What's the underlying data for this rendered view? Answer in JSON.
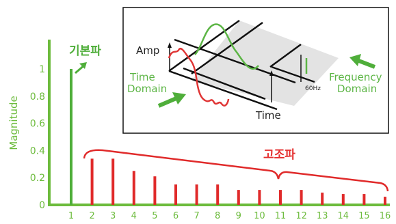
{
  "chart_data": {
    "type": "bar",
    "title": "",
    "ylabel": "Magnitude",
    "xlabel": "",
    "ylim": [
      0,
      1.1
    ],
    "y_ticks": [
      "0",
      "0.2",
      "0.4",
      "0.6",
      "0.8",
      "1"
    ],
    "categories": [
      "1",
      "2",
      "3",
      "4",
      "5",
      "6",
      "7",
      "8",
      "9",
      "10",
      "11",
      "12",
      "13",
      "14",
      "15",
      "16"
    ],
    "values": [
      1.0,
      0.34,
      0.34,
      0.25,
      0.21,
      0.15,
      0.15,
      0.15,
      0.11,
      0.11,
      0.11,
      0.11,
      0.09,
      0.08,
      0.08,
      0.06
    ],
    "fundamental_label": "기본파",
    "harmonics_label": "고조파",
    "colors": {
      "fundamental": "#4fae3a",
      "harmonics": "#e02a2a",
      "axis": "#6cbb3c"
    },
    "grid": false
  },
  "inset": {
    "amp_label": "Amp",
    "time_label": "Time",
    "time_domain_label": [
      "Time",
      "Domain"
    ],
    "frequency_domain_label": [
      "Frequency",
      "Domain"
    ],
    "freq_value_label": "60Hz"
  }
}
